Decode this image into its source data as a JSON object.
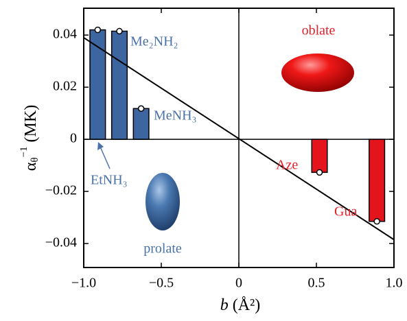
{
  "chart_data": {
    "type": "bar",
    "x_label": {
      "symbol": "b",
      "unit": "(Å²)"
    },
    "y_label": {
      "symbol": "α",
      "sub": "θ",
      "sup": "−1",
      "unit": "(MK)"
    },
    "xlim": [
      -1.0,
      1.0
    ],
    "xticks": [
      {
        "value": -1.0,
        "label": "−1.0"
      },
      {
        "value": -0.5,
        "label": "−0.5"
      },
      0,
      0.5,
      {
        "value": 1.0,
        "label": "1.0"
      }
    ],
    "ylim": [
      -0.0492,
      0.0503
    ],
    "yticks": [
      {
        "value": -0.04,
        "label": "−0.04"
      },
      {
        "value": -0.02,
        "label": "−0.02"
      },
      0,
      0.02,
      0.04
    ],
    "series": [
      {
        "color": "#3d66a0",
        "x": [
          -0.91,
          -0.77,
          -0.63
        ],
        "values": [
          0.042,
          0.0415,
          0.0118
        ]
      },
      {
        "color": "#e4141c",
        "x": [
          0.52,
          0.89
        ],
        "values": [
          -0.0127,
          -0.0315
        ]
      }
    ],
    "fit_line": {
      "color": "#000000",
      "x": [
        -1.0,
        1.0
      ],
      "values": [
        0.039,
        -0.0385
      ]
    },
    "annotations": [
      "Me₂NH₂",
      "MeNH₃",
      "EtNH₃",
      "Aze",
      "Gua",
      "oblate",
      "prolate"
    ]
  }
}
